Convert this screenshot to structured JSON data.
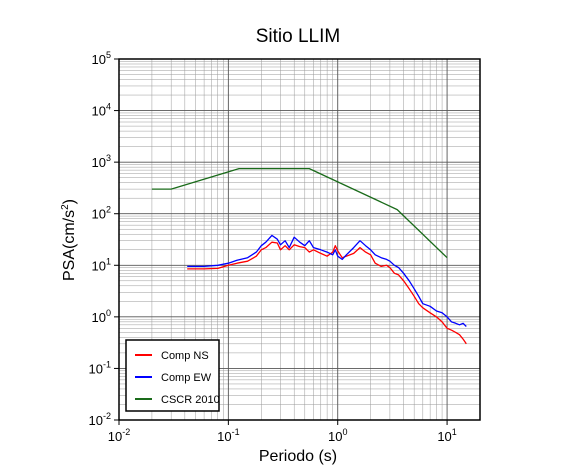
{
  "chart_data": {
    "type": "line",
    "title": "Sitio LLIM",
    "xlabel": "Periodo (s)",
    "ylabel_base": "PSA(cm/s",
    "ylabel_sup": "2",
    "ylabel_close": ")",
    "x_scale": "log",
    "y_scale": "log",
    "xlim": [
      0.01,
      20
    ],
    "ylim": [
      0.01,
      100000
    ],
    "grid": true,
    "legend_position": "bottom-left",
    "x_ticks": [
      {
        "value": 0.01,
        "base": "10",
        "exp": "-2"
      },
      {
        "value": 0.1,
        "base": "10",
        "exp": "-1"
      },
      {
        "value": 1,
        "base": "10",
        "exp": "0"
      },
      {
        "value": 10,
        "base": "10",
        "exp": "1"
      }
    ],
    "y_ticks": [
      {
        "value": 0.01,
        "base": "10",
        "exp": "-2"
      },
      {
        "value": 0.1,
        "base": "10",
        "exp": "-1"
      },
      {
        "value": 1,
        "base": "10",
        "exp": "0"
      },
      {
        "value": 10,
        "base": "10",
        "exp": "1"
      },
      {
        "value": 100,
        "base": "10",
        "exp": "2"
      },
      {
        "value": 1000,
        "base": "10",
        "exp": "3"
      },
      {
        "value": 10000,
        "base": "10",
        "exp": "4"
      },
      {
        "value": 100000,
        "base": "10",
        "exp": "5"
      }
    ],
    "series": [
      {
        "name": "Comp NS",
        "color": "#ff0000",
        "x": [
          0.042,
          0.06,
          0.08,
          0.1,
          0.12,
          0.15,
          0.18,
          0.2,
          0.22,
          0.25,
          0.28,
          0.3,
          0.33,
          0.36,
          0.4,
          0.45,
          0.5,
          0.55,
          0.6,
          0.7,
          0.8,
          0.9,
          0.95,
          1.0,
          1.1,
          1.2,
          1.4,
          1.6,
          1.8,
          2.0,
          2.2,
          2.5,
          2.8,
          3.0,
          3.3,
          3.6,
          4.0,
          4.5,
          5.0,
          5.5,
          6.0,
          7.0,
          8.0,
          9.0,
          10.0,
          11.0,
          12.0,
          13.0,
          14.0,
          15.0
        ],
        "y": [
          8.5,
          8.5,
          8.7,
          10,
          11,
          12,
          15,
          20,
          22,
          28,
          27,
          20,
          24,
          20,
          25,
          23,
          22,
          18,
          20,
          17,
          15,
          18,
          24,
          19,
          14,
          15,
          17,
          22,
          18,
          16,
          11,
          9.5,
          10,
          9,
          7,
          6.5,
          5,
          3.5,
          2.5,
          1.8,
          1.5,
          1.2,
          1.0,
          0.8,
          0.6,
          0.55,
          0.5,
          0.45,
          0.37,
          0.3
        ]
      },
      {
        "name": "Comp EW",
        "color": "#0000ff",
        "x": [
          0.042,
          0.06,
          0.08,
          0.1,
          0.12,
          0.15,
          0.18,
          0.2,
          0.22,
          0.25,
          0.28,
          0.3,
          0.33,
          0.36,
          0.4,
          0.45,
          0.5,
          0.55,
          0.6,
          0.7,
          0.8,
          0.9,
          0.95,
          1.0,
          1.1,
          1.2,
          1.4,
          1.6,
          1.8,
          2.0,
          2.2,
          2.5,
          2.8,
          3.0,
          3.3,
          3.6,
          4.0,
          4.5,
          5.0,
          5.5,
          6.0,
          7.0,
          8.0,
          9.0,
          10.0,
          11.0,
          12.0,
          13.0,
          14.0,
          15.0
        ],
        "y": [
          9.5,
          9.5,
          10,
          11,
          12.5,
          14,
          18,
          24,
          28,
          38,
          32,
          25,
          30,
          22,
          35,
          28,
          24,
          30,
          22,
          20,
          18,
          16,
          20,
          15,
          13,
          16,
          22,
          30,
          24,
          20,
          16,
          14,
          13,
          12,
          10,
          9,
          7,
          5,
          3.5,
          2.5,
          1.8,
          1.6,
          1.3,
          1.2,
          1.0,
          0.8,
          0.75,
          0.7,
          0.75,
          0.65
        ]
      },
      {
        "name": "CSCR 2010",
        "color": "#1a6b1a",
        "x": [
          0.02,
          0.03,
          0.125,
          0.55,
          3.5,
          10.0
        ],
        "y": [
          300,
          300,
          750,
          750,
          120,
          14
        ]
      }
    ]
  }
}
